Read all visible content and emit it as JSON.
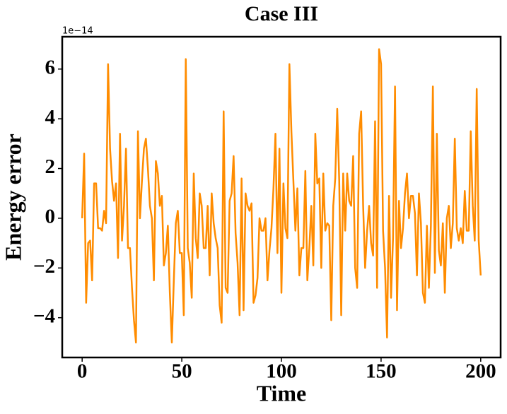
{
  "chart_data": {
    "type": "line",
    "title": "Case III",
    "x_label": "Time",
    "y_label": "Energy error",
    "y_offset_label": "1e−14",
    "x": [
      0,
      1,
      2,
      3,
      4,
      5,
      6,
      7,
      8,
      9,
      10,
      11,
      12,
      13,
      14,
      15,
      16,
      17,
      18,
      19,
      20,
      21,
      22,
      23,
      24,
      25,
      26,
      27,
      28,
      29,
      30,
      31,
      32,
      33,
      34,
      35,
      36,
      37,
      38,
      39,
      40,
      41,
      42,
      43,
      44,
      45,
      46,
      47,
      48,
      49,
      50,
      51,
      52,
      53,
      54,
      55,
      56,
      57,
      58,
      59,
      60,
      61,
      62,
      63,
      64,
      65,
      66,
      67,
      68,
      69,
      70,
      71,
      72,
      73,
      74,
      75,
      76,
      77,
      78,
      79,
      80,
      81,
      82,
      83,
      84,
      85,
      86,
      87,
      88,
      89,
      90,
      91,
      92,
      93,
      94,
      95,
      96,
      97,
      98,
      99,
      100,
      101,
      102,
      103,
      104,
      105,
      106,
      107,
      108,
      109,
      110,
      111,
      112,
      113,
      114,
      115,
      116,
      117,
      118,
      119,
      120,
      121,
      122,
      123,
      124,
      125,
      126,
      127,
      128,
      129,
      130,
      131,
      132,
      133,
      134,
      135,
      136,
      137,
      138,
      139,
      140,
      141,
      142,
      143,
      144,
      145,
      146,
      147,
      148,
      149,
      150,
      151,
      152,
      153,
      154,
      155,
      156,
      157,
      158,
      159,
      160,
      161,
      162,
      163,
      164,
      165,
      166,
      167,
      168,
      169,
      170,
      171,
      172,
      173,
      174,
      175,
      176,
      177,
      178,
      179,
      180,
      181,
      182,
      183,
      184,
      185,
      186,
      187,
      188,
      189,
      190,
      191,
      192,
      193,
      194,
      195,
      196,
      197,
      198,
      199,
      200
    ],
    "series": [
      {
        "name": "Energy error",
        "color": "#ff8c00",
        "values": [
          0,
          2.6,
          -3.4,
          -1.0,
          -0.9,
          -2.5,
          1.4,
          1.4,
          -0.4,
          -0.4,
          -0.5,
          0.3,
          -0.2,
          6.2,
          2.8,
          1.5,
          0.7,
          1.4,
          -1.6,
          3.4,
          -0.9,
          0.5,
          2.8,
          -1.2,
          -1.2,
          -2.8,
          -4.1,
          -5.0,
          3.5,
          0.0,
          1.5,
          2.8,
          3.2,
          2.0,
          0.5,
          0.0,
          -2.5,
          2.3,
          1.8,
          0.5,
          0.9,
          -1.9,
          -1.4,
          -0.3,
          -3.0,
          -5.0,
          -2.5,
          -0.2,
          0.3,
          -1.4,
          -1.4,
          -3.9,
          6.4,
          -1.2,
          -1.8,
          -3.2,
          1.8,
          -0.8,
          -1.6,
          1.0,
          0.5,
          -1.2,
          -1.2,
          0.5,
          -2.3,
          1.0,
          -0.2,
          -0.8,
          -1.2,
          -3.5,
          -4.2,
          4.3,
          -2.8,
          -3.0,
          0.7,
          1.0,
          2.5,
          -0.6,
          -1.8,
          -3.9,
          1.6,
          -3.7,
          1.0,
          0.5,
          0.3,
          0.6,
          -3.4,
          -3.1,
          -2.4,
          0.0,
          -0.5,
          -0.5,
          0.0,
          -2.5,
          -1.3,
          -0.4,
          1.2,
          3.4,
          -1.4,
          2.8,
          -3.0,
          1.4,
          -0.4,
          -0.8,
          6.2,
          3.5,
          1.5,
          -0.5,
          1.2,
          -2.3,
          -1.2,
          -1.2,
          1.9,
          -2.5,
          -1.2,
          0.5,
          -1.9,
          3.4,
          1.4,
          1.6,
          -2.0,
          1.8,
          -0.5,
          -0.2,
          -0.3,
          -4.1,
          0.5,
          1.6,
          4.4,
          1.5,
          -3.9,
          1.8,
          -0.5,
          1.8,
          0.7,
          0.5,
          2.5,
          -2.0,
          -2.8,
          3.4,
          4.3,
          0.5,
          -2.0,
          -0.5,
          0.5,
          -1.0,
          -1.5,
          3.9,
          -2.8,
          6.8,
          6.2,
          -0.5,
          -2.0,
          -4.8,
          0.9,
          -3.2,
          -0.8,
          5.3,
          -3.7,
          0.7,
          -1.2,
          -0.4,
          1.0,
          1.8,
          0.0,
          0.9,
          0.9,
          0.2,
          -2.3,
          1.0,
          -0.2,
          -3.0,
          -3.4,
          -0.3,
          -2.8,
          -0.3,
          5.3,
          -2.2,
          3.4,
          -1.3,
          -1.9,
          -0.2,
          -3.0,
          0.0,
          0.5,
          -1.2,
          -0.2,
          3.2,
          -0.4,
          -0.9,
          -0.4,
          -1.0,
          1.1,
          -0.5,
          -0.5,
          3.5,
          0.5,
          -0.9,
          5.2,
          -0.9,
          -2.3
        ]
      }
    ],
    "xlim": [
      -10,
      210
    ],
    "xticks": [
      0,
      50,
      100,
      150,
      200
    ],
    "ylim": [
      -5.6,
      7.3
    ],
    "yticks": [
      {
        "value": -4,
        "label": "−4"
      },
      {
        "value": -2,
        "label": "−2"
      },
      0,
      2,
      4,
      6
    ],
    "grid": false
  }
}
